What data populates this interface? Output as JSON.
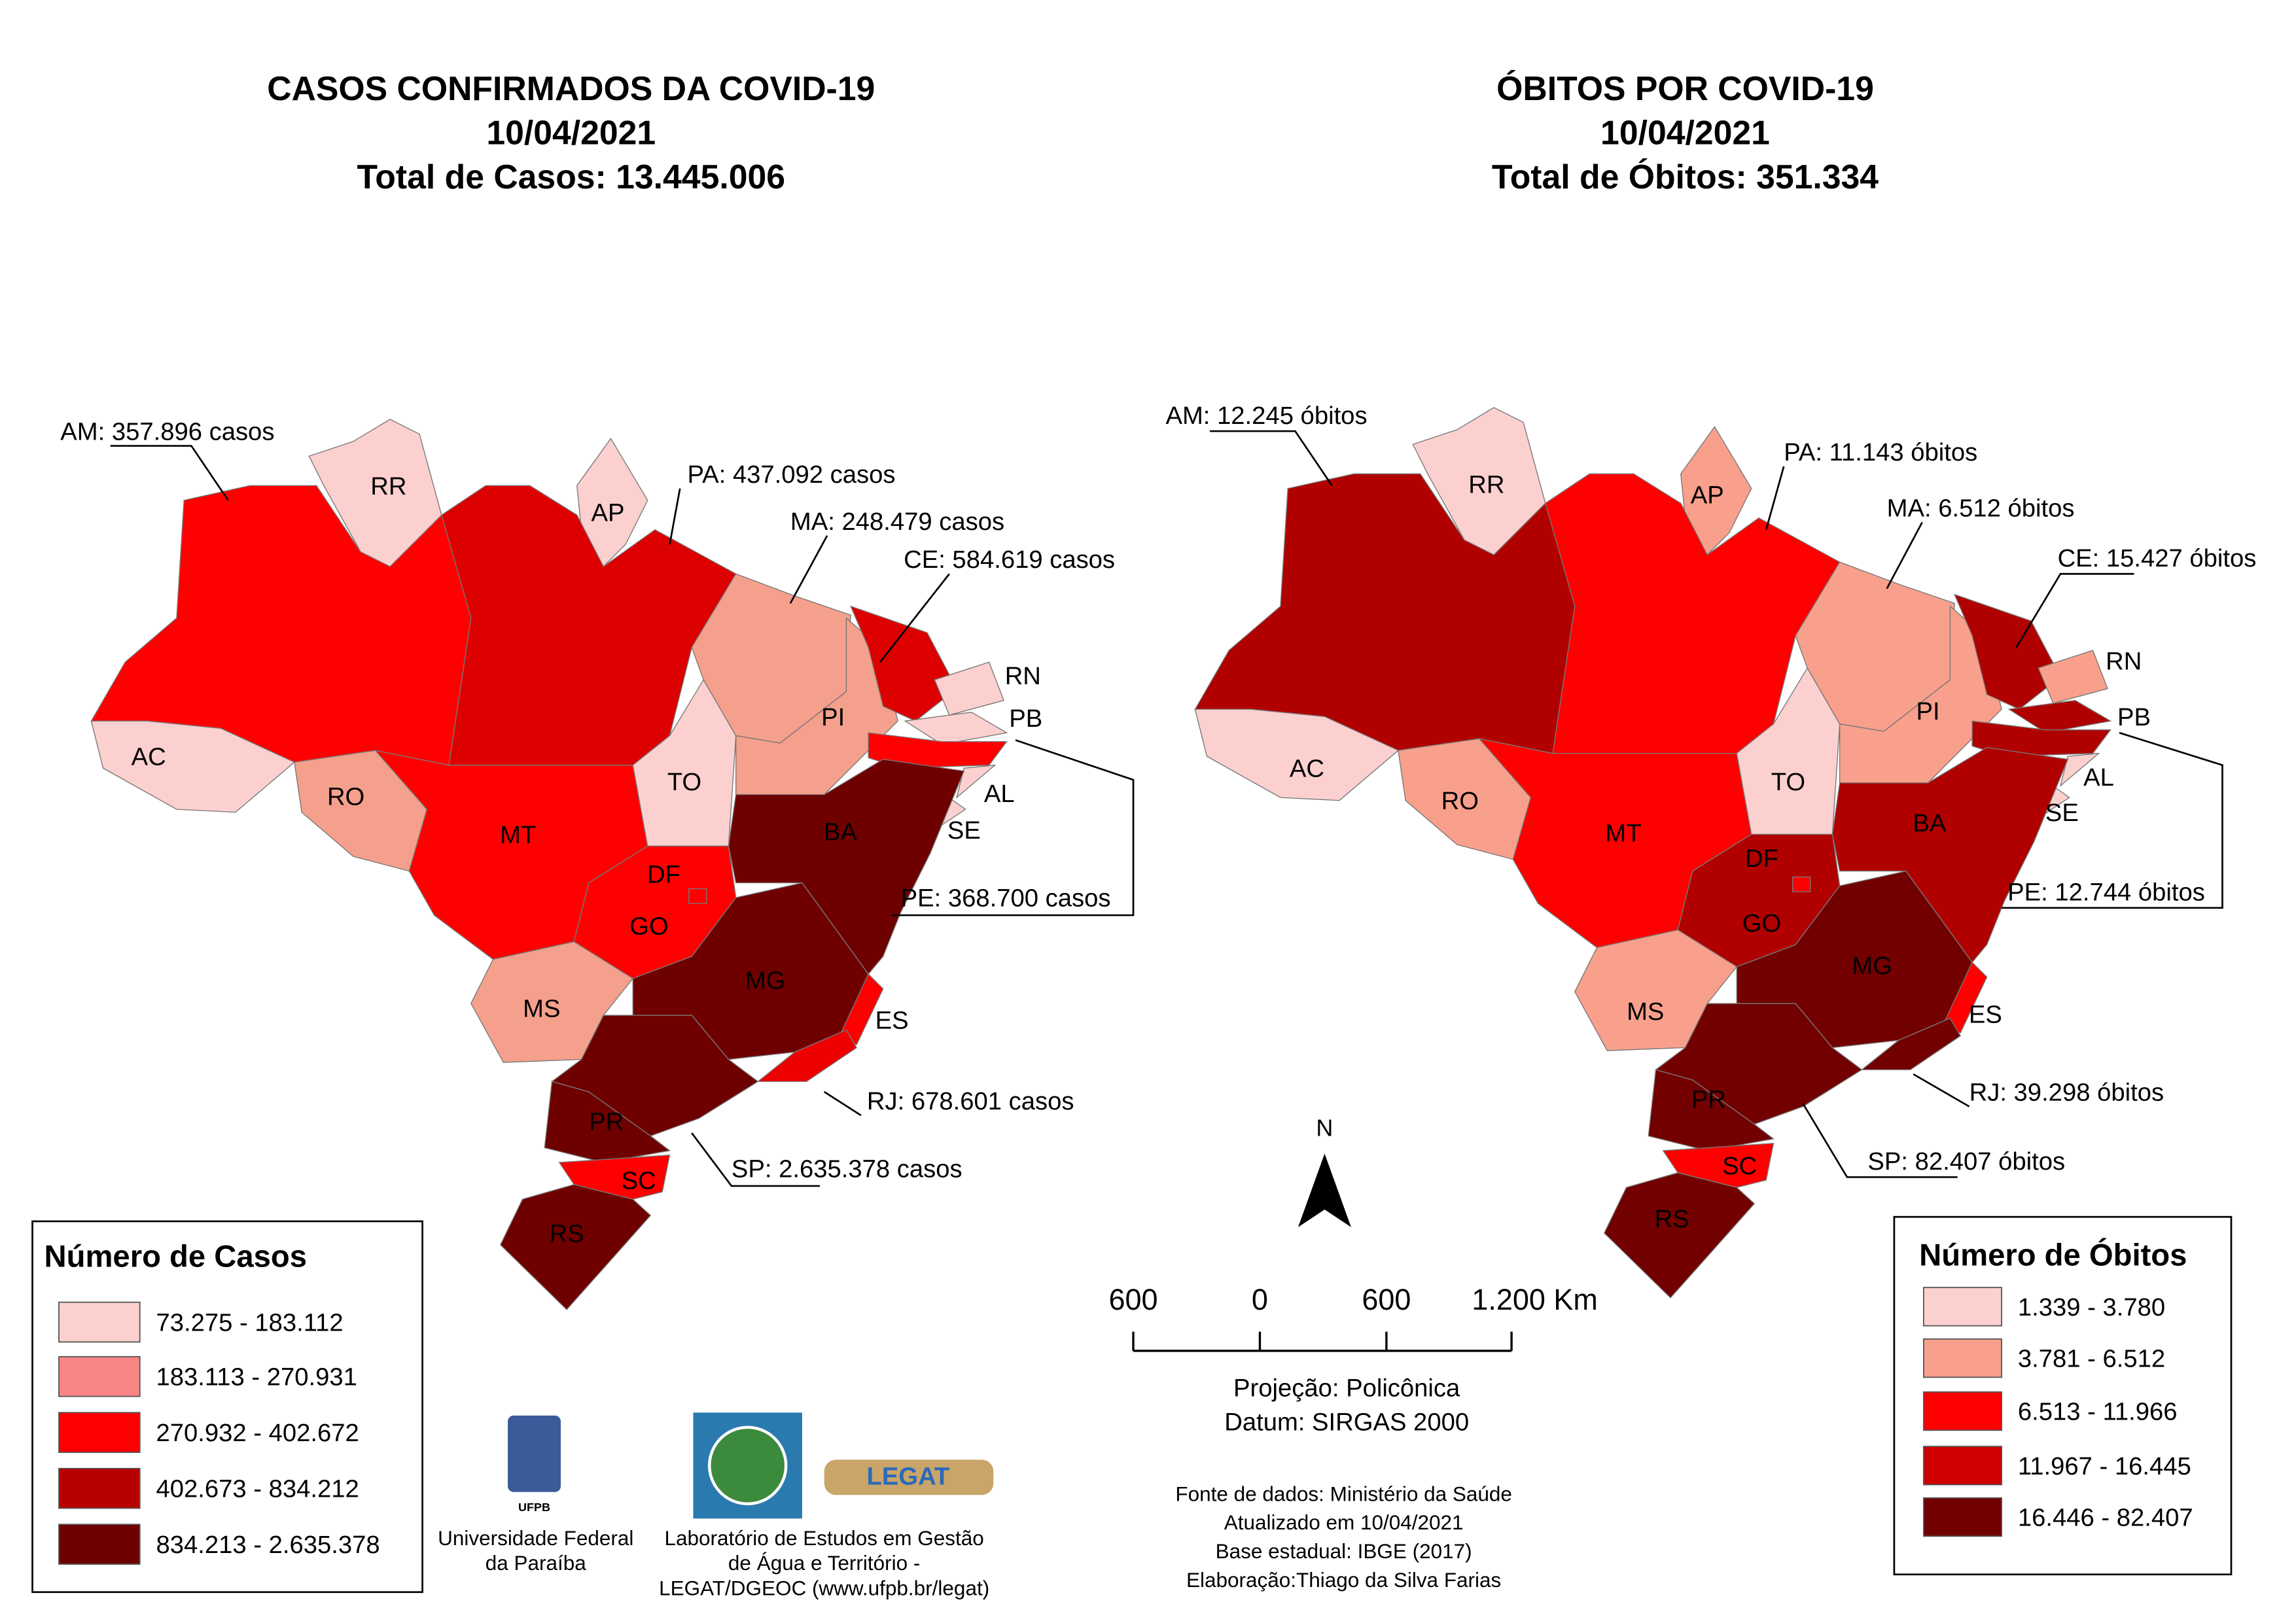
{
  "left": {
    "title": [
      "CASOS CONFIRMADOS DA COVID-19",
      "10/04/2021",
      "Total de Casos: 13.445.006"
    ],
    "states": [
      "RR",
      "AP",
      "AC",
      "RO",
      "MT",
      "TO",
      "PI",
      "RN",
      "PB",
      "AL",
      "SE",
      "BA",
      "DF",
      "GO",
      "MG",
      "MS",
      "ES",
      "PR",
      "SC",
      "RS"
    ],
    "callouts": [
      "AM: 357.896 casos",
      "PA: 437.092 casos",
      "MA: 248.479 casos",
      "CE: 584.619 casos",
      "PE: 368.700 casos",
      "RJ: 678.601 casos",
      "SP: 2.635.378 casos"
    ],
    "legend": {
      "title": "Número de Casos",
      "items": [
        {
          "label": "73.275 - 183.112",
          "color": "#fdd0d0"
        },
        {
          "label": "183.113 - 270.931",
          "color": "#f98585"
        },
        {
          "label": "270.932 - 402.672",
          "color": "#ff0000"
        },
        {
          "label": "402.673 - 834.212",
          "color": "#b80000"
        },
        {
          "label": "834.213 - 2.635.378",
          "color": "#6e0000"
        }
      ]
    }
  },
  "right": {
    "title": [
      "ÓBITOS POR COVID-19",
      "10/04/2021",
      "Total de Óbitos: 351.334"
    ],
    "states": [
      "RR",
      "AP",
      "AC",
      "RO",
      "MT",
      "TO",
      "PI",
      "RN",
      "PB",
      "AL",
      "SE",
      "BA",
      "DF",
      "GO",
      "MG",
      "MS",
      "ES",
      "PR",
      "SC",
      "RS"
    ],
    "callouts": [
      "AM: 12.245 óbitos",
      "PA: 11.143 óbitos",
      "MA: 6.512 óbitos",
      "CE: 15.427 óbitos",
      "PE: 12.744 óbitos",
      "RJ: 39.298 óbitos",
      "SP: 82.407 óbitos"
    ],
    "legend": {
      "title": "Número de Óbitos",
      "items": [
        {
          "label": "1.339 - 3.780",
          "color": "#fdd0d0"
        },
        {
          "label": "3.781 - 6.512",
          "color": "#f8a08c"
        },
        {
          "label": "6.513 - 11.966",
          "color": "#ff0000"
        },
        {
          "label": "11.967 - 16.445",
          "color": "#d00000"
        },
        {
          "label": "16.446 - 82.407",
          "color": "#730000"
        }
      ]
    }
  },
  "north": "N",
  "scale": [
    "600",
    "0",
    "600",
    "1.200 Km"
  ],
  "projection": [
    "Projeção: Policônica",
    "Datum: SIRGAS 2000"
  ],
  "credits": [
    "Fonte de dados: Ministério da Saúde",
    "Atualizado em 10/04/2021",
    "Base estadual: IBGE (2017)",
    "Elaboração:Thiago da Silva Farias"
  ],
  "logos": {
    "ufpb": {
      "mark": "UFPB",
      "caption": [
        "Universidade Federal",
        "da Paraíba"
      ]
    },
    "legat": {
      "mark": "LEGAT",
      "caption": [
        "Laboratório de Estudos em Gestão",
        "de Água e Território -",
        "LEGAT/DGEOC (www.ufpb.br/legat)"
      ]
    }
  }
}
